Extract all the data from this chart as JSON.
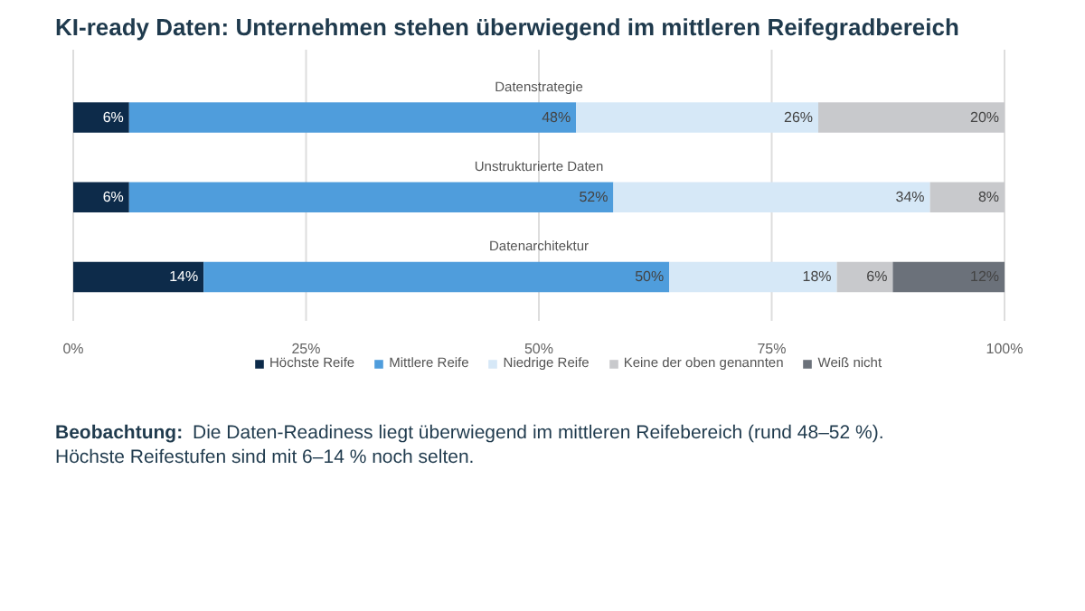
{
  "chart_data": {
    "type": "bar",
    "orientation": "horizontal",
    "stacked": true,
    "title": "KI-ready Daten: Unternehmen stehen überwiegend im mittleren Reifegradbereich",
    "categories": [
      "Datenstrategie",
      "Unstrukturierte Daten",
      "Datenarchitektur"
    ],
    "series": [
      {
        "name": "Höchste Reife",
        "color": "#0d2b4a",
        "values": [
          6,
          6,
          14
        ],
        "value_labels": [
          "6%",
          "6%",
          "14%"
        ]
      },
      {
        "name": "Mittlere Reife",
        "color": "#4f9ddc",
        "values": [
          48,
          52,
          50
        ],
        "value_labels": [
          "48%",
          "52%",
          "50%"
        ]
      },
      {
        "name": "Niedrige Reife",
        "color": "#d6e8f7",
        "values": [
          26,
          34,
          18
        ],
        "value_labels": [
          "26%",
          "34%",
          "18%"
        ]
      },
      {
        "name": "Keine der oben genannten",
        "color": "#c8c9cc",
        "values": [
          20,
          8,
          6
        ],
        "value_labels": [
          "20%",
          "8%",
          "6%"
        ]
      },
      {
        "name": "Weiß nicht",
        "color": "#6b717a",
        "values": [
          null,
          null,
          12
        ],
        "value_labels": [
          null,
          null,
          "12%"
        ]
      }
    ],
    "xlim": [
      0,
      100
    ],
    "xticks": [
      {
        "value": 0,
        "label": "0%"
      },
      {
        "value": 25,
        "label": "25%"
      },
      {
        "value": 50,
        "label": "50%"
      },
      {
        "value": 75,
        "label": "75%"
      },
      {
        "value": 100,
        "label": "100%"
      }
    ],
    "grid": "x",
    "legend": "bottom",
    "annotations": [
      "Beobachtung: Die Daten-Readiness liegt überwiegend im mittleren Reifebereich (rund 48–52 %). Höchste Reifestufen sind mit 6–14 % noch selten."
    ]
  }
}
